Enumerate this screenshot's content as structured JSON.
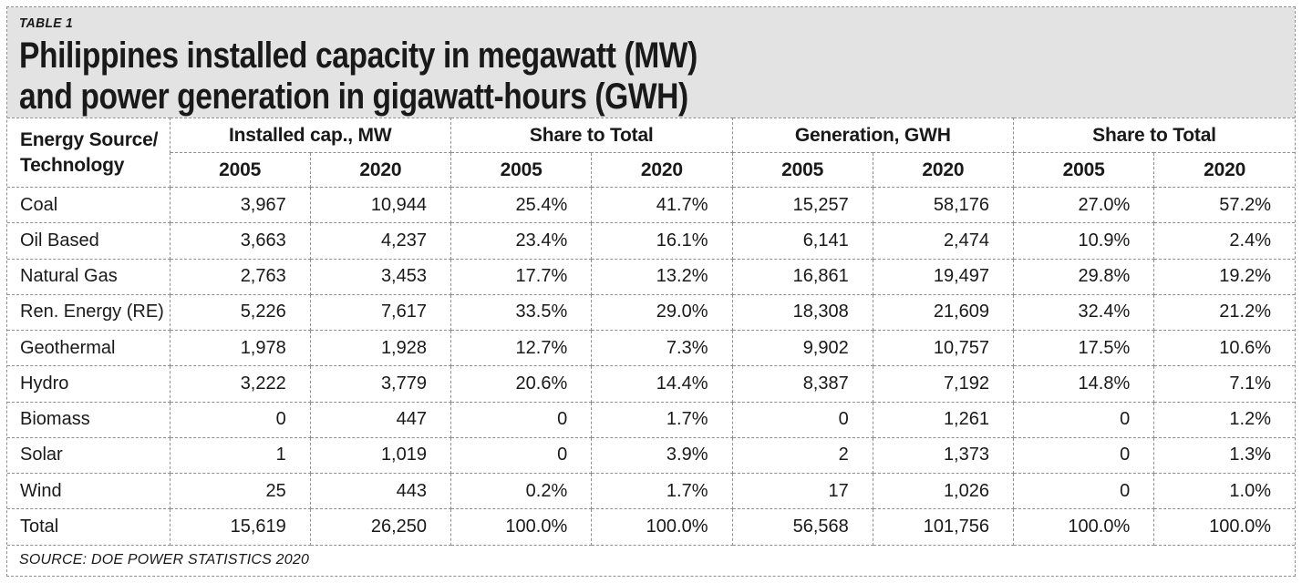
{
  "masthead": {
    "tag": "TABLE 1",
    "title_line1": "Philippines installed capacity in megawatt (MW)",
    "title_line2": "and power generation in gigawatt-hours (GWH)"
  },
  "chart_data": {
    "type": "table",
    "title": "Philippines installed capacity in megawatt (MW) and power generation in gigawatt-hours (GWH)",
    "row_label_header": "Energy Source/\nTechnology",
    "column_groups": [
      {
        "label": "Installed cap., MW",
        "sub": [
          "2005",
          "2020"
        ]
      },
      {
        "label": "Share to Total",
        "sub": [
          "2005",
          "2020"
        ]
      },
      {
        "label": "Generation, GWH",
        "sub": [
          "2005",
          "2020"
        ]
      },
      {
        "label": "Share to Total",
        "sub": [
          "2005",
          "2020"
        ]
      }
    ],
    "rows": [
      {
        "label": "Coal",
        "values": [
          "3,967",
          "10,944",
          "25.4%",
          "41.7%",
          "15,257",
          "58,176",
          "27.0%",
          "57.2%"
        ]
      },
      {
        "label": "Oil Based",
        "values": [
          "3,663",
          "4,237",
          "23.4%",
          "16.1%",
          "6,141",
          "2,474",
          "10.9%",
          "2.4%"
        ]
      },
      {
        "label": "Natural Gas",
        "values": [
          "2,763",
          "3,453",
          "17.7%",
          "13.2%",
          "16,861",
          "19,497",
          "29.8%",
          "19.2%"
        ]
      },
      {
        "label": "Ren. Energy (RE)",
        "values": [
          "5,226",
          "7,617",
          "33.5%",
          "29.0%",
          "18,308",
          "21,609",
          "32.4%",
          "21.2%"
        ]
      },
      {
        "label": "Geothermal",
        "values": [
          "1,978",
          "1,928",
          "12.7%",
          "7.3%",
          "9,902",
          "10,757",
          "17.5%",
          "10.6%"
        ]
      },
      {
        "label": "Hydro",
        "values": [
          "3,222",
          "3,779",
          "20.6%",
          "14.4%",
          "8,387",
          "7,192",
          "14.8%",
          "7.1%"
        ]
      },
      {
        "label": "Biomass",
        "values": [
          "0",
          "447",
          "0",
          "1.7%",
          "0",
          "1,261",
          "0",
          "1.2%"
        ]
      },
      {
        "label": "Solar",
        "values": [
          "1",
          "1,019",
          "0",
          "3.9%",
          "2",
          "1,373",
          "0",
          "1.3%"
        ]
      },
      {
        "label": "Wind",
        "values": [
          "25",
          "443",
          "0.2%",
          "1.7%",
          "17",
          "1,026",
          "0",
          "1.0%"
        ]
      },
      {
        "label": "Total",
        "values": [
          "15,619",
          "26,250",
          "100.0%",
          "100.0%",
          "56,568",
          "101,756",
          "100.0%",
          "100.0%"
        ]
      }
    ],
    "source": "SOURCE: DOE POWER STATISTICS 2020"
  },
  "colors": {
    "masthead_bg": "#e3e3e3",
    "border": "#8f8f8f",
    "text": "#191919"
  }
}
